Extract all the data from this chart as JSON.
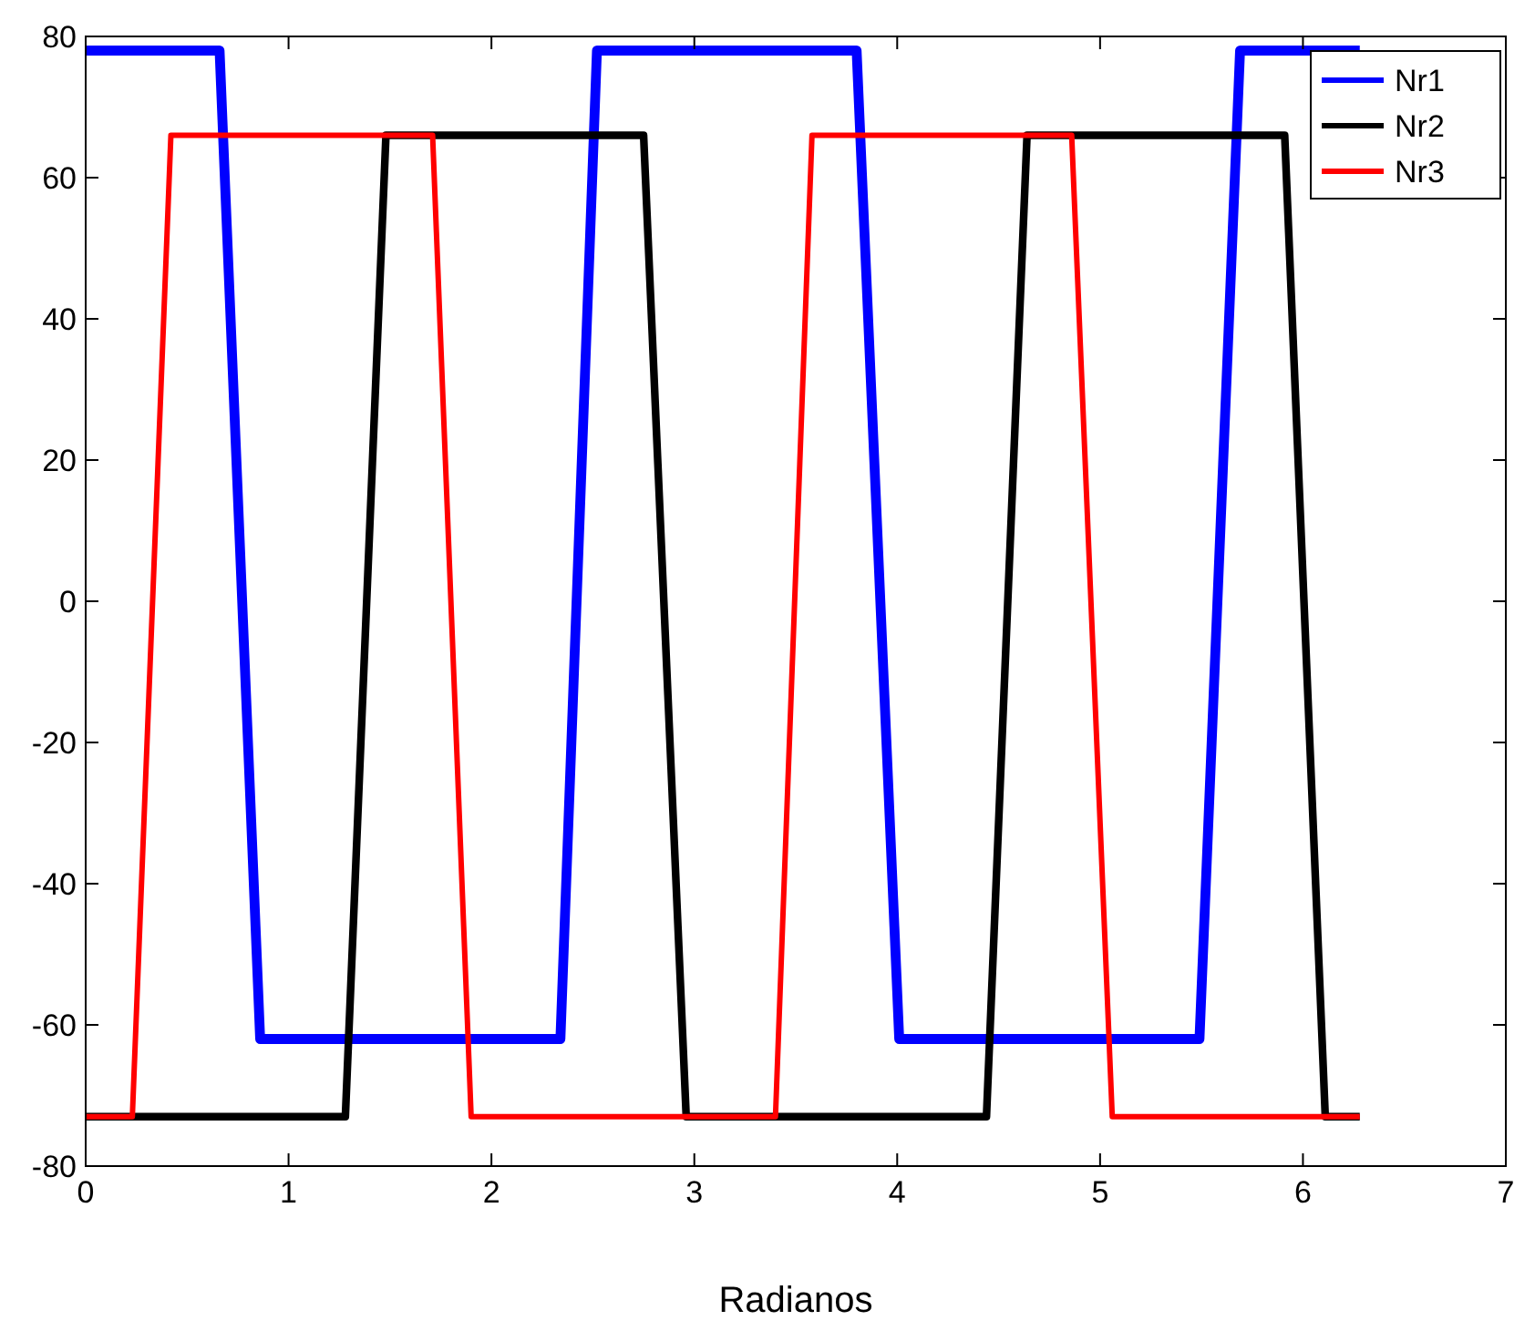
{
  "chart_data": {
    "type": "line",
    "xlabel": "Radianos",
    "xlim": [
      0,
      7
    ],
    "ylim": [
      -80,
      80
    ],
    "xticks": [
      0,
      1,
      2,
      3,
      4,
      5,
      6,
      7
    ],
    "yticks": [
      -80,
      -60,
      -40,
      -20,
      0,
      20,
      40,
      60,
      80
    ],
    "grid": false,
    "legend": "top right",
    "marker": "none",
    "line_style": "solid",
    "series": [
      {
        "name": "Nr1",
        "color": "#0000ff",
        "x": [
          0,
          0.66,
          0.86,
          2.34,
          2.52,
          3.8,
          4.01,
          5.49,
          5.69,
          6.28
        ],
        "values": [
          78,
          78,
          -62,
          -62,
          78,
          78,
          -62,
          -62,
          78,
          78
        ]
      },
      {
        "name": "Nr2",
        "color": "#000000",
        "x": [
          0,
          1.28,
          1.48,
          2.75,
          2.96,
          4.44,
          4.64,
          5.91,
          6.11,
          6.28
        ],
        "values": [
          -73,
          -73,
          66,
          66,
          -73,
          -73,
          66,
          66,
          -73,
          -73
        ]
      },
      {
        "name": "Nr3",
        "color": "#ff0000",
        "x": [
          0,
          0.23,
          0.42,
          1.71,
          1.9,
          3.4,
          3.58,
          4.86,
          5.06,
          6.28
        ],
        "values": [
          -73,
          -73,
          66,
          66,
          -73,
          -73,
          66,
          66,
          -73,
          -73
        ]
      }
    ]
  }
}
